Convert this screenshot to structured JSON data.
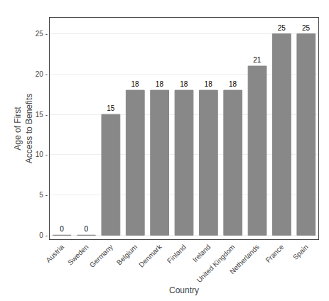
{
  "chart_data": {
    "type": "bar",
    "categories": [
      "Austria",
      "Sweden",
      "Germany",
      "Belgium",
      "Denmark",
      "Finland",
      "Ireland",
      "United Kingdom",
      "Netherlands",
      "France",
      "Spain"
    ],
    "values": [
      0,
      0,
      15,
      18,
      18,
      18,
      18,
      18,
      21,
      25,
      25
    ],
    "color": "#888888",
    "xlabel": "Country",
    "ylabel": "Age of First\nAccess to Benefits",
    "ylim": [
      -0.5,
      27
    ],
    "yticks": [
      {
        "value": 0,
        "label": "0 -"
      },
      {
        "value": 5,
        "label": "5 -"
      },
      {
        "value": 10,
        "label": "10 -"
      },
      {
        "value": 15,
        "label": "15 -"
      },
      {
        "value": 20,
        "label": "20 -"
      },
      {
        "value": 25,
        "label": "25 -"
      }
    ],
    "grid": true,
    "data_labels": true
  }
}
